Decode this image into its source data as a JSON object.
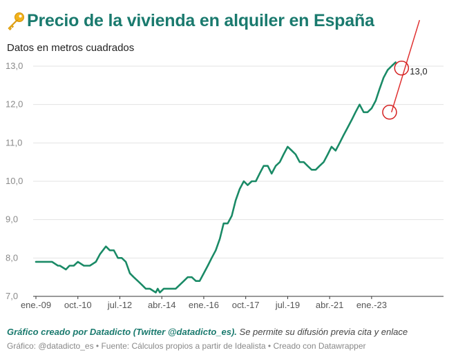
{
  "title": "Precio de la vivienda en alquiler en España",
  "title_icon": "key-icon",
  "subtitle": "Datos en metros cuadrados",
  "credit": {
    "strong": "Gráfico creado por Datadicto (Twitter @datadicto_es).",
    "rest": " Se permite su difusión previa cita y enlace"
  },
  "footer": "Gráfico: @datadicto_es • Fuente: Cálculos propios a partir de Idealista • Creado con Datawrapper",
  "colors": {
    "line": "#1a8a66",
    "title": "#1a7a6e",
    "trend": "#e03030",
    "circle": "#d42020",
    "grid": "#e3e3e3"
  },
  "chart_data": {
    "type": "line",
    "title": "Precio de la vivienda en alquiler en España",
    "subtitle": "Datos en metros cuadrados",
    "xlabel": "",
    "ylabel": "",
    "ylim": [
      7.0,
      13.0
    ],
    "xlim": [
      2009.0,
      2026.0
    ],
    "yticks": [
      7.0,
      8.0,
      9.0,
      10.0,
      11.0,
      12.0,
      13.0
    ],
    "ytick_labels": [
      "7,0",
      "8,0",
      "9,0",
      "10,0",
      "11,0",
      "12,0",
      "13,0"
    ],
    "xticks": [
      2009.0,
      2010.75,
      2012.5,
      2014.25,
      2016.0,
      2017.75,
      2019.5,
      2021.25,
      2023.0
    ],
    "xtick_labels": [
      "ene.-09",
      "oct.-10",
      "jul.-12",
      "abr.-14",
      "ene.-16",
      "oct.-17",
      "jul.-19",
      "abr.-21",
      "ene.-23"
    ],
    "grid": true,
    "series": [
      {
        "x": [
          2009.0,
          2009.33,
          2009.67,
          2009.92,
          2010.0,
          2010.25,
          2010.4,
          2010.58,
          2010.75,
          2011.0,
          2011.08,
          2011.25,
          2011.5,
          2011.67,
          2011.92,
          2012.08,
          2012.25,
          2012.42,
          2012.58,
          2012.75,
          2012.92,
          2013.08,
          2013.25,
          2013.42,
          2013.58,
          2013.75,
          2014.0,
          2014.08,
          2014.17,
          2014.33,
          2014.5,
          2014.67,
          2014.83,
          2015.0,
          2015.17,
          2015.33,
          2015.5,
          2015.67,
          2015.83,
          2016.0,
          2016.17,
          2016.33,
          2016.5,
          2016.67,
          2016.83,
          2017.0,
          2017.17,
          2017.33,
          2017.5,
          2017.67,
          2017.83,
          2018.0,
          2018.17,
          2018.33,
          2018.5,
          2018.67,
          2018.83,
          2019.0,
          2019.17,
          2019.33,
          2019.5,
          2019.67,
          2019.83,
          2020.0,
          2020.17,
          2020.33,
          2020.5,
          2020.67,
          2020.83,
          2021.0,
          2021.17,
          2021.33,
          2021.5,
          2021.67,
          2021.83,
          2022.0,
          2022.17,
          2022.33,
          2022.5,
          2022.67,
          2022.83,
          2023.0,
          2023.17,
          2023.33,
          2023.5,
          2023.67,
          2023.83,
          2024.0
        ],
        "values": [
          7.9,
          7.9,
          7.9,
          7.8,
          7.8,
          7.7,
          7.8,
          7.8,
          7.9,
          7.8,
          7.8,
          7.8,
          7.9,
          8.1,
          8.3,
          8.2,
          8.2,
          8.0,
          8.0,
          7.9,
          7.6,
          7.5,
          7.4,
          7.3,
          7.2,
          7.2,
          7.1,
          7.2,
          7.1,
          7.2,
          7.2,
          7.2,
          7.2,
          7.3,
          7.4,
          7.5,
          7.5,
          7.4,
          7.4,
          7.6,
          7.8,
          8.0,
          8.2,
          8.5,
          8.9,
          8.9,
          9.1,
          9.5,
          9.8,
          10.0,
          9.9,
          10.0,
          10.0,
          10.2,
          10.4,
          10.4,
          10.2,
          10.4,
          10.5,
          10.7,
          10.9,
          10.8,
          10.7,
          10.5,
          10.5,
          10.4,
          10.3,
          10.3,
          10.4,
          10.5,
          10.7,
          10.9,
          10.8,
          11.0,
          11.2,
          11.4,
          11.6,
          11.8,
          12.0,
          11.8,
          11.8,
          11.9,
          12.1,
          12.4,
          12.7,
          12.9,
          13.0,
          13.1
        ]
      }
    ],
    "trend_line": {
      "x": [
        2023.83,
        2025.0
      ],
      "values": [
        11.8,
        14.2
      ]
    },
    "annotation_circles": [
      {
        "x": 2023.75,
        "value": 11.8
      },
      {
        "x": 2024.25,
        "value": 12.95
      }
    ],
    "value_label": {
      "text": "13,0",
      "x": 2024.25,
      "value": 12.95
    }
  }
}
